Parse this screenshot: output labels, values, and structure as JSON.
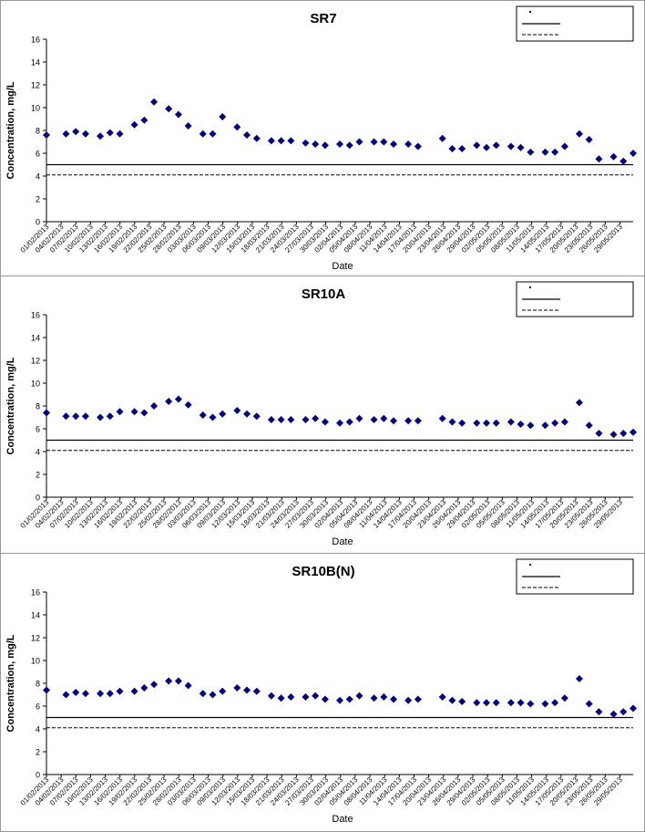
{
  "chart_data": [
    {
      "type": "scatter",
      "title": "SR7",
      "xlabel": "Date",
      "ylabel": "Concentration, mg/L",
      "ylim": [
        0,
        16
      ],
      "yticks": [
        0,
        2,
        4,
        6,
        8,
        10,
        12,
        14,
        16
      ],
      "x_tick_labels": [
        "01/02/2013",
        "04/02/2013",
        "07/02/2013",
        "10/02/2013",
        "13/02/2013",
        "16/02/2013",
        "19/02/2013",
        "22/02/2013",
        "25/02/2013",
        "28/02/2013",
        "03/03/2013",
        "06/03/2013",
        "09/03/2013",
        "12/03/2013",
        "15/03/2013",
        "18/03/2013",
        "21/03/2013",
        "24/03/2013",
        "27/03/2013",
        "30/03/2013",
        "02/04/2013",
        "05/04/2013",
        "08/04/2013",
        "11/04/2013",
        "14/04/2013",
        "17/04/2013",
        "20/04/2013",
        "23/04/2013",
        "26/04/2013",
        "29/04/2013",
        "02/05/2013",
        "05/05/2013",
        "08/05/2013",
        "11/05/2013",
        "14/05/2013",
        "17/05/2013",
        "20/05/2013",
        "23/05/2013",
        "26/05/2013",
        "29/05/2013"
      ],
      "legend": {
        "position": "top-right",
        "entries": [
          "",
          "",
          ""
        ]
      },
      "series": [
        {
          "marker": "diamond",
          "color": "#000080",
          "points": [
            [
              "01/02/2013",
              7.6
            ],
            [
              "05/02/2013",
              7.7
            ],
            [
              "07/02/2013",
              7.9
            ],
            [
              "09/02/2013",
              7.7
            ],
            [
              "12/02/2013",
              7.5
            ],
            [
              "14/02/2013",
              7.8
            ],
            [
              "16/02/2013",
              7.7
            ],
            [
              "19/02/2013",
              8.5
            ],
            [
              "21/02/2013",
              8.9
            ],
            [
              "23/02/2013",
              10.5
            ],
            [
              "26/02/2013",
              9.9
            ],
            [
              "28/02/2013",
              9.4
            ],
            [
              "02/03/2013",
              8.4
            ],
            [
              "05/03/2013",
              7.7
            ],
            [
              "07/03/2013",
              7.7
            ],
            [
              "09/03/2013",
              9.2
            ],
            [
              "12/03/2013",
              8.3
            ],
            [
              "14/03/2013",
              7.6
            ],
            [
              "16/03/2013",
              7.3
            ],
            [
              "19/03/2013",
              7.1
            ],
            [
              "21/03/2013",
              7.1
            ],
            [
              "23/03/2013",
              7.1
            ],
            [
              "26/03/2013",
              6.9
            ],
            [
              "28/03/2013",
              6.8
            ],
            [
              "30/03/2013",
              6.7
            ],
            [
              "02/04/2013",
              6.8
            ],
            [
              "04/04/2013",
              6.7
            ],
            [
              "06/04/2013",
              7.0
            ],
            [
              "09/04/2013",
              7.0
            ],
            [
              "11/04/2013",
              7.0
            ],
            [
              "13/04/2013",
              6.8
            ],
            [
              "16/04/2013",
              6.8
            ],
            [
              "18/04/2013",
              6.6
            ],
            [
              "23/04/2013",
              7.3
            ],
            [
              "25/04/2013",
              6.4
            ],
            [
              "27/04/2013",
              6.4
            ],
            [
              "30/04/2013",
              6.7
            ],
            [
              "02/05/2013",
              6.5
            ],
            [
              "04/05/2013",
              6.7
            ],
            [
              "07/05/2013",
              6.6
            ],
            [
              "09/05/2013",
              6.5
            ],
            [
              "11/05/2013",
              6.1
            ],
            [
              "14/05/2013",
              6.1
            ],
            [
              "16/05/2013",
              6.1
            ],
            [
              "18/05/2013",
              6.6
            ],
            [
              "21/05/2013",
              7.7
            ],
            [
              "23/05/2013",
              7.2
            ],
            [
              "25/05/2013",
              5.5
            ],
            [
              "28/05/2013",
              5.7
            ],
            [
              "30/05/2013",
              5.3
            ],
            [
              "01/06/2013",
              6.0
            ]
          ]
        }
      ],
      "reference_lines": [
        {
          "style": "solid",
          "y": 5.0
        },
        {
          "style": "dashed",
          "y": 4.1
        }
      ]
    },
    {
      "type": "scatter",
      "title": "SR10A",
      "xlabel": "Date",
      "ylabel": "Concentration, mg/L",
      "ylim": [
        0,
        16
      ],
      "yticks": [
        0,
        2,
        4,
        6,
        8,
        10,
        12,
        14,
        16
      ],
      "x_tick_labels": [
        "01/02/2013",
        "04/02/2013",
        "07/02/2013",
        "10/02/2013",
        "13/02/2013",
        "16/02/2013",
        "19/02/2013",
        "22/02/2013",
        "25/02/2013",
        "28/02/2013",
        "03/03/2013",
        "06/03/2013",
        "09/03/2013",
        "12/03/2013",
        "15/03/2013",
        "18/03/2013",
        "21/03/2013",
        "24/03/2013",
        "27/03/2013",
        "30/03/2013",
        "02/04/2013",
        "05/04/2013",
        "08/04/2013",
        "11/04/2013",
        "14/04/2013",
        "17/04/2013",
        "20/04/2013",
        "23/04/2013",
        "26/04/2013",
        "29/04/2013",
        "02/05/2013",
        "05/05/2013",
        "08/05/2013",
        "11/05/2013",
        "14/05/2013",
        "17/05/2013",
        "20/05/2013",
        "23/05/2013",
        "26/05/2013",
        "29/05/2013"
      ],
      "legend": {
        "position": "top-right",
        "entries": [
          "",
          "",
          ""
        ]
      },
      "series": [
        {
          "marker": "diamond",
          "color": "#000080",
          "points": [
            [
              "01/02/2013",
              7.4
            ],
            [
              "05/02/2013",
              7.1
            ],
            [
              "07/02/2013",
              7.1
            ],
            [
              "09/02/2013",
              7.1
            ],
            [
              "12/02/2013",
              7.0
            ],
            [
              "14/02/2013",
              7.1
            ],
            [
              "16/02/2013",
              7.5
            ],
            [
              "19/02/2013",
              7.5
            ],
            [
              "21/02/2013",
              7.4
            ],
            [
              "23/02/2013",
              8.0
            ],
            [
              "26/02/2013",
              8.4
            ],
            [
              "28/02/2013",
              8.6
            ],
            [
              "02/03/2013",
              8.1
            ],
            [
              "05/03/2013",
              7.2
            ],
            [
              "07/03/2013",
              7.0
            ],
            [
              "09/03/2013",
              7.3
            ],
            [
              "12/03/2013",
              7.6
            ],
            [
              "14/03/2013",
              7.3
            ],
            [
              "16/03/2013",
              7.1
            ],
            [
              "19/03/2013",
              6.8
            ],
            [
              "21/03/2013",
              6.8
            ],
            [
              "23/03/2013",
              6.8
            ],
            [
              "26/03/2013",
              6.8
            ],
            [
              "28/03/2013",
              6.9
            ],
            [
              "30/03/2013",
              6.6
            ],
            [
              "02/04/2013",
              6.5
            ],
            [
              "04/04/2013",
              6.6
            ],
            [
              "06/04/2013",
              6.9
            ],
            [
              "09/04/2013",
              6.8
            ],
            [
              "11/04/2013",
              6.9
            ],
            [
              "13/04/2013",
              6.7
            ],
            [
              "16/04/2013",
              6.7
            ],
            [
              "18/04/2013",
              6.7
            ],
            [
              "23/04/2013",
              6.9
            ],
            [
              "25/04/2013",
              6.6
            ],
            [
              "27/04/2013",
              6.5
            ],
            [
              "30/04/2013",
              6.5
            ],
            [
              "02/05/2013",
              6.5
            ],
            [
              "04/05/2013",
              6.5
            ],
            [
              "07/05/2013",
              6.6
            ],
            [
              "09/05/2013",
              6.4
            ],
            [
              "11/05/2013",
              6.3
            ],
            [
              "14/05/2013",
              6.3
            ],
            [
              "16/05/2013",
              6.5
            ],
            [
              "18/05/2013",
              6.6
            ],
            [
              "21/05/2013",
              8.3
            ],
            [
              "23/05/2013",
              6.3
            ],
            [
              "25/05/2013",
              5.6
            ],
            [
              "28/05/2013",
              5.5
            ],
            [
              "30/05/2013",
              5.6
            ],
            [
              "01/06/2013",
              5.7
            ]
          ]
        }
      ],
      "reference_lines": [
        {
          "style": "solid",
          "y": 5.0
        },
        {
          "style": "dashed",
          "y": 4.1
        }
      ]
    },
    {
      "type": "scatter",
      "title": "SR10B(N)",
      "xlabel": "Date",
      "ylabel": "Concentration, mg/L",
      "ylim": [
        0,
        16
      ],
      "yticks": [
        0,
        2,
        4,
        6,
        8,
        10,
        12,
        14,
        16
      ],
      "x_tick_labels": [
        "01/02/2013",
        "04/02/2013",
        "07/02/2013",
        "10/02/2013",
        "13/02/2013",
        "16/02/2013",
        "19/02/2013",
        "22/02/2013",
        "25/02/2013",
        "28/02/2013",
        "03/03/2013",
        "06/03/2013",
        "09/03/2013",
        "12/03/2013",
        "15/03/2013",
        "18/03/2013",
        "21/03/2013",
        "24/03/2013",
        "27/03/2013",
        "30/03/2013",
        "02/04/2013",
        "05/04/2013",
        "08/04/2013",
        "11/04/2013",
        "14/04/2013",
        "17/04/2013",
        "20/04/2013",
        "23/04/2013",
        "26/04/2013",
        "29/04/2013",
        "02/05/2013",
        "05/05/2013",
        "08/05/2013",
        "11/05/2013",
        "14/05/2013",
        "17/05/2013",
        "20/05/2013",
        "23/05/2013",
        "26/05/2013",
        "29/05/2013"
      ],
      "legend": {
        "position": "top-right",
        "entries": [
          "",
          "",
          ""
        ]
      },
      "series": [
        {
          "marker": "diamond",
          "color": "#000080",
          "points": [
            [
              "01/02/2013",
              7.4
            ],
            [
              "05/02/2013",
              7.0
            ],
            [
              "07/02/2013",
              7.2
            ],
            [
              "09/02/2013",
              7.1
            ],
            [
              "12/02/2013",
              7.1
            ],
            [
              "14/02/2013",
              7.1
            ],
            [
              "16/02/2013",
              7.3
            ],
            [
              "19/02/2013",
              7.3
            ],
            [
              "21/02/2013",
              7.6
            ],
            [
              "23/02/2013",
              7.9
            ],
            [
              "26/02/2013",
              8.2
            ],
            [
              "28/02/2013",
              8.2
            ],
            [
              "02/03/2013",
              7.8
            ],
            [
              "05/03/2013",
              7.1
            ],
            [
              "07/03/2013",
              7.0
            ],
            [
              "09/03/2013",
              7.3
            ],
            [
              "12/03/2013",
              7.6
            ],
            [
              "14/03/2013",
              7.4
            ],
            [
              "16/03/2013",
              7.3
            ],
            [
              "19/03/2013",
              6.9
            ],
            [
              "21/03/2013",
              6.7
            ],
            [
              "23/03/2013",
              6.8
            ],
            [
              "26/03/2013",
              6.8
            ],
            [
              "28/03/2013",
              6.9
            ],
            [
              "30/03/2013",
              6.6
            ],
            [
              "02/04/2013",
              6.5
            ],
            [
              "04/04/2013",
              6.6
            ],
            [
              "06/04/2013",
              6.9
            ],
            [
              "09/04/2013",
              6.7
            ],
            [
              "11/04/2013",
              6.8
            ],
            [
              "13/04/2013",
              6.6
            ],
            [
              "16/04/2013",
              6.5
            ],
            [
              "18/04/2013",
              6.6
            ],
            [
              "23/04/2013",
              6.8
            ],
            [
              "25/04/2013",
              6.5
            ],
            [
              "27/04/2013",
              6.4
            ],
            [
              "30/04/2013",
              6.3
            ],
            [
              "02/05/2013",
              6.3
            ],
            [
              "04/05/2013",
              6.3
            ],
            [
              "07/05/2013",
              6.3
            ],
            [
              "09/05/2013",
              6.3
            ],
            [
              "11/05/2013",
              6.2
            ],
            [
              "14/05/2013",
              6.2
            ],
            [
              "16/05/2013",
              6.3
            ],
            [
              "18/05/2013",
              6.7
            ],
            [
              "21/05/2013",
              8.4
            ],
            [
              "23/05/2013",
              6.2
            ],
            [
              "25/05/2013",
              5.5
            ],
            [
              "28/05/2013",
              5.3
            ],
            [
              "30/05/2013",
              5.5
            ],
            [
              "01/06/2013",
              5.8
            ]
          ]
        }
      ],
      "reference_lines": [
        {
          "style": "solid",
          "y": 5.0
        },
        {
          "style": "dashed",
          "y": 4.1
        }
      ]
    }
  ]
}
